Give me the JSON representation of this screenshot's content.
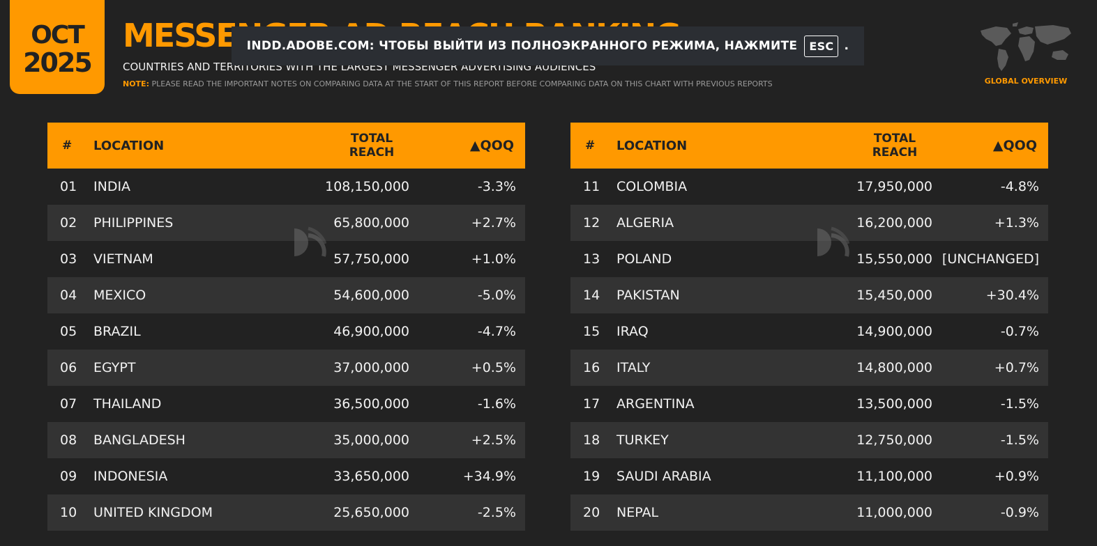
{
  "badge": {
    "month": "OCT",
    "year": "2025"
  },
  "header": {
    "title": "MESSENGER AD REACH RANKING",
    "subtitle": "COUNTRIES AND TERRITORIES WITH THE LARGEST MESSENGER ADVERTISING AUDIENCES",
    "note_label": "NOTE:",
    "note_text": "PLEASE READ THE IMPORTANT NOTES ON COMPARING DATA AT THE START OF THIS REPORT BEFORE COMPARING DATA ON THIS CHART WITH PREVIOUS REPORTS"
  },
  "fullscreen_banner": {
    "text": "INDD.ADOBE.COM: ЧТОБЫ ВЫЙТИ ИЗ ПОЛНОЭКРАННОГО РЕЖИМА, НАЖМИТЕ",
    "key": "ESC",
    "suffix": "."
  },
  "globe": {
    "label": "GLOBAL OVERVIEW",
    "icon": "world-map-icon"
  },
  "colors": {
    "accent": "#ff9900",
    "background": "#222222",
    "row_alt": "#333333"
  },
  "columns": {
    "num": "#",
    "location": "LOCATION",
    "reach_line1": "TOTAL",
    "reach_line2": "REACH",
    "qoq": "▲QOQ"
  },
  "tables": [
    {
      "rows": [
        {
          "num": "01",
          "location": "INDIA",
          "reach": "108,150,000",
          "qoq": "-3.3%"
        },
        {
          "num": "02",
          "location": "PHILIPPINES",
          "reach": "65,800,000",
          "qoq": "+2.7%"
        },
        {
          "num": "03",
          "location": "VIETNAM",
          "reach": "57,750,000",
          "qoq": "+1.0%"
        },
        {
          "num": "04",
          "location": "MEXICO",
          "reach": "54,600,000",
          "qoq": "-5.0%"
        },
        {
          "num": "05",
          "location": "BRAZIL",
          "reach": "46,900,000",
          "qoq": "-4.7%"
        },
        {
          "num": "06",
          "location": "EGYPT",
          "reach": "37,000,000",
          "qoq": "+0.5%"
        },
        {
          "num": "07",
          "location": "THAILAND",
          "reach": "36,500,000",
          "qoq": "-1.6%"
        },
        {
          "num": "08",
          "location": "BANGLADESH",
          "reach": "35,000,000",
          "qoq": "+2.5%"
        },
        {
          "num": "09",
          "location": "INDONESIA",
          "reach": "33,650,000",
          "qoq": "+34.9%"
        },
        {
          "num": "10",
          "location": "UNITED KINGDOM",
          "reach": "25,650,000",
          "qoq": "-2.5%"
        }
      ]
    },
    {
      "rows": [
        {
          "num": "11",
          "location": "COLOMBIA",
          "reach": "17,950,000",
          "qoq": "-4.8%"
        },
        {
          "num": "12",
          "location": "ALGERIA",
          "reach": "16,200,000",
          "qoq": "+1.3%"
        },
        {
          "num": "13",
          "location": "POLAND",
          "reach": "15,550,000",
          "qoq": "[UNCHANGED]"
        },
        {
          "num": "14",
          "location": "PAKISTAN",
          "reach": "15,450,000",
          "qoq": "+30.4%"
        },
        {
          "num": "15",
          "location": "IRAQ",
          "reach": "14,900,000",
          "qoq": "-0.7%"
        },
        {
          "num": "16",
          "location": "ITALY",
          "reach": "14,800,000",
          "qoq": "+0.7%"
        },
        {
          "num": "17",
          "location": "ARGENTINA",
          "reach": "13,500,000",
          "qoq": "-1.5%"
        },
        {
          "num": "18",
          "location": "TURKEY",
          "reach": "12,750,000",
          "qoq": "-1.5%"
        },
        {
          "num": "19",
          "location": "SAUDI ARABIA",
          "reach": "11,100,000",
          "qoq": "+0.9%"
        },
        {
          "num": "20",
          "location": "NEPAL",
          "reach": "11,000,000",
          "qoq": "-0.9%"
        }
      ]
    }
  ]
}
